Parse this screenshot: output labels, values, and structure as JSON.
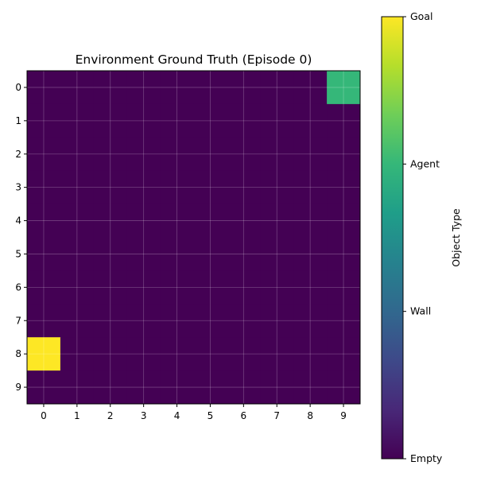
{
  "chart_data": {
    "type": "heatmap",
    "title": "Environment Ground Truth (Episode 0)",
    "xlabel": "",
    "ylabel": "",
    "x_ticks": [
      "0",
      "1",
      "2",
      "3",
      "4",
      "5",
      "6",
      "7",
      "8",
      "9"
    ],
    "y_ticks": [
      "0",
      "1",
      "2",
      "3",
      "4",
      "5",
      "6",
      "7",
      "8",
      "9"
    ],
    "grid": true,
    "value_range": [
      0,
      3
    ],
    "cells": [
      [
        0,
        0,
        0,
        0,
        0,
        0,
        0,
        0,
        0,
        2
      ],
      [
        0,
        0,
        0,
        0,
        0,
        0,
        0,
        0,
        0,
        0
      ],
      [
        0,
        0,
        0,
        0,
        0,
        0,
        0,
        0,
        0,
        0
      ],
      [
        0,
        0,
        0,
        0,
        0,
        0,
        0,
        0,
        0,
        0
      ],
      [
        0,
        0,
        0,
        0,
        0,
        0,
        0,
        0,
        0,
        0
      ],
      [
        0,
        0,
        0,
        0,
        0,
        0,
        0,
        0,
        0,
        0
      ],
      [
        0,
        0,
        0,
        0,
        0,
        0,
        0,
        0,
        0,
        0
      ],
      [
        0,
        0,
        0,
        0,
        0,
        0,
        0,
        0,
        0,
        0
      ],
      [
        3,
        0,
        0,
        0,
        0,
        0,
        0,
        0,
        0,
        0
      ],
      [
        0,
        0,
        0,
        0,
        0,
        0,
        0,
        0,
        0,
        0
      ]
    ],
    "colorbar": {
      "label": "Object Type",
      "ticks": [
        {
          "value": 0,
          "label": "Empty"
        },
        {
          "value": 1,
          "label": "Wall"
        },
        {
          "value": 2,
          "label": "Agent"
        },
        {
          "value": 3,
          "label": "Goal"
        }
      ]
    },
    "colormap": [
      "#440154",
      "#482878",
      "#3e4989",
      "#31688e",
      "#26828e",
      "#1f9e89",
      "#35b779",
      "#6ece58",
      "#b5de2b",
      "#fde725"
    ]
  }
}
